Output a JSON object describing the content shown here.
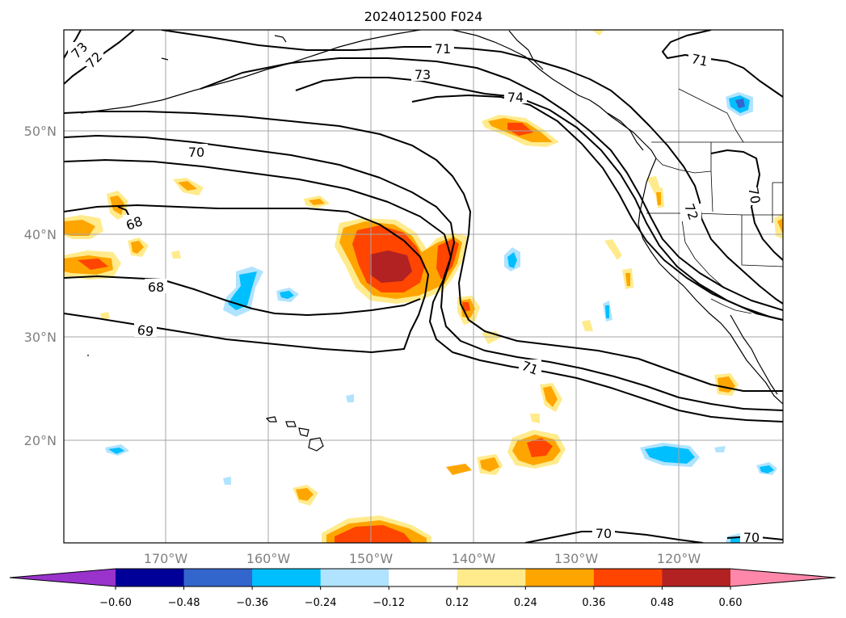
{
  "title": "2024012500 F024",
  "lat_labels": [
    "50°N",
    "40°N",
    "30°N",
    "20°N"
  ],
  "lon_labels": [
    "170°W",
    "160°W",
    "150°W",
    "140°W",
    "130°W",
    "120°W"
  ],
  "colorbar": {
    "colors": [
      "#9933cc",
      "#000099",
      "#3366cc",
      "#00bfff",
      "#b0e3ff",
      "#ffffff",
      "#ffeb8c",
      "#ffa500",
      "#ff4500",
      "#b22222",
      "#ff88aa"
    ],
    "tick_labels": [
      "−0.60",
      "−0.48",
      "−0.36",
      "−0.24",
      "−0.12",
      "0.12",
      "0.24",
      "0.36",
      "0.48",
      "0.60"
    ]
  },
  "contour_labels": {
    "c73_nw": "73",
    "c72_nw": "72",
    "c71_top": "71",
    "c73_mid": "73",
    "c74": "74",
    "c71_ne": "71",
    "c70_west": "70",
    "c68_a": "68",
    "c68_b": "68",
    "c69": "69",
    "c71_se": "71",
    "c72_east": "72",
    "c70_east": "70",
    "c70_bottom": "70",
    "c70_br": "70"
  }
}
